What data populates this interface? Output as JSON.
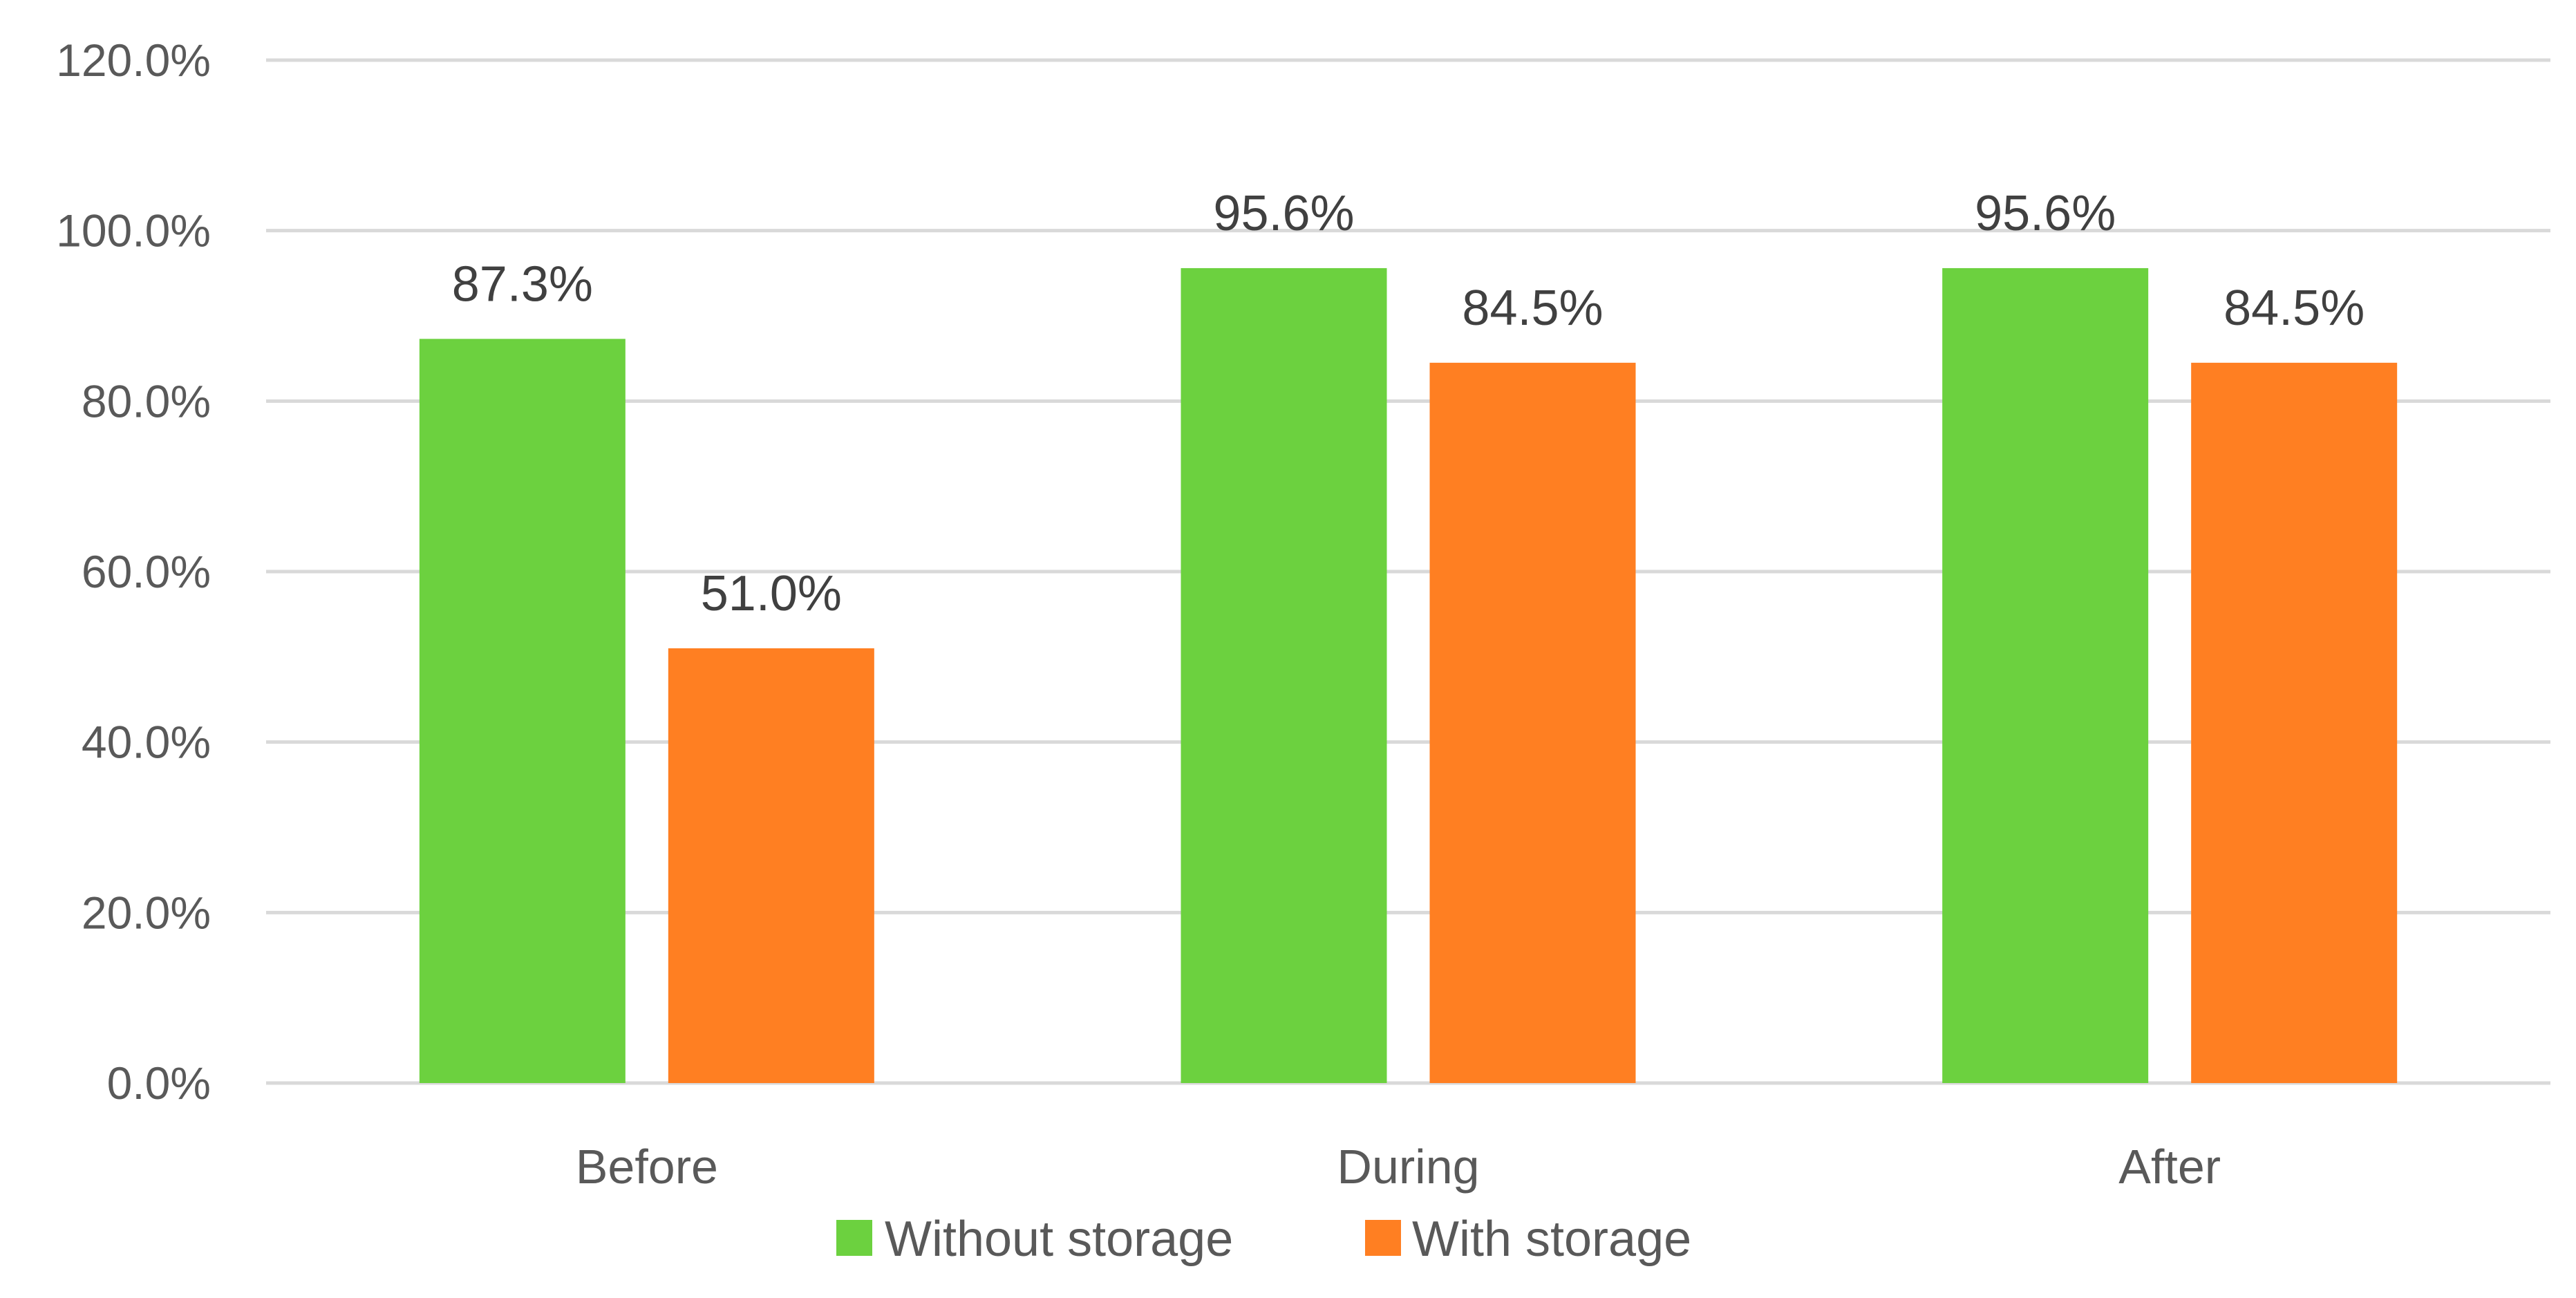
{
  "chart_data": {
    "type": "bar",
    "categories": [
      "Before",
      "During",
      "After"
    ],
    "series": [
      {
        "name": "Without storage",
        "values": [
          87.3,
          95.6,
          95.6
        ],
        "labels": [
          "87.3%",
          "95.6%",
          "95.6%"
        ],
        "color": "#6CD13F"
      },
      {
        "name": "With storage",
        "values": [
          51.0,
          84.5,
          84.5
        ],
        "labels": [
          "51.0%",
          "84.5%",
          "84.5%"
        ],
        "color": "#FF7F22"
      }
    ],
    "ylim": [
      0,
      120
    ],
    "yticks": [
      {
        "value": 0,
        "label": "0.0%"
      },
      {
        "value": 20,
        "label": "20.0%"
      },
      {
        "value": 40,
        "label": "40.0%"
      },
      {
        "value": 60,
        "label": "60.0%"
      },
      {
        "value": 80,
        "label": "80.0%"
      },
      {
        "value": 100,
        "label": "100.0%"
      },
      {
        "value": 120,
        "label": "120.0%"
      }
    ],
    "grid": true,
    "gridColor": "#D9D9D9",
    "legend": "bottom",
    "title": "",
    "xlabel": "",
    "ylabel": ""
  }
}
